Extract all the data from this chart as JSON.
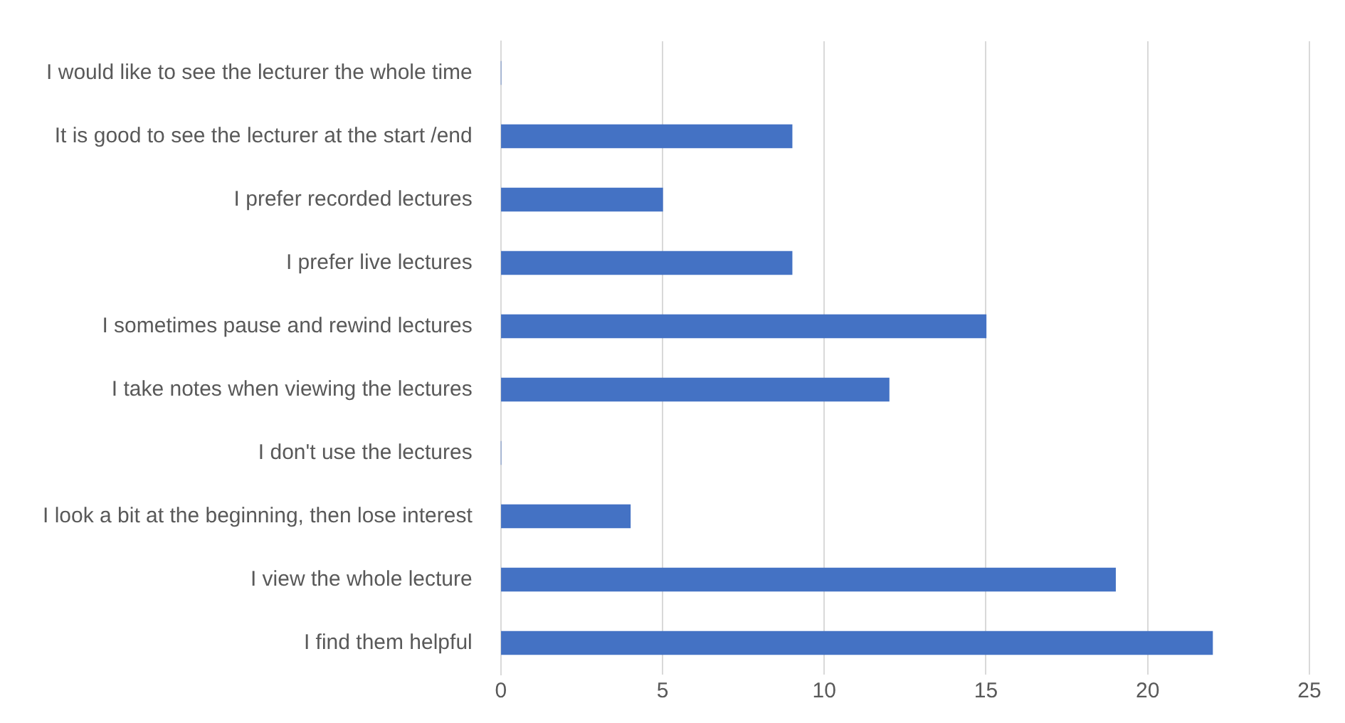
{
  "chart_data": {
    "type": "bar",
    "orientation": "horizontal",
    "categories": [
      "I would like to see the lecturer the whole time",
      "It is good to see the lecturer at the start /end",
      "I prefer recorded lectures",
      "I prefer live lectures",
      "I sometimes pause and rewind lectures",
      "I take notes when viewing the lectures",
      "I don't use the lectures",
      "I look a bit at the beginning, then lose interest",
      "I view the whole lecture",
      "I find them helpful"
    ],
    "values": [
      0,
      9,
      5,
      9,
      15,
      12,
      0,
      4,
      19,
      22
    ],
    "color": "#4472c4",
    "xlim": [
      0,
      25
    ],
    "xticks": [
      0,
      5,
      10,
      15,
      20,
      25
    ],
    "grid": "x",
    "legend": false
  }
}
